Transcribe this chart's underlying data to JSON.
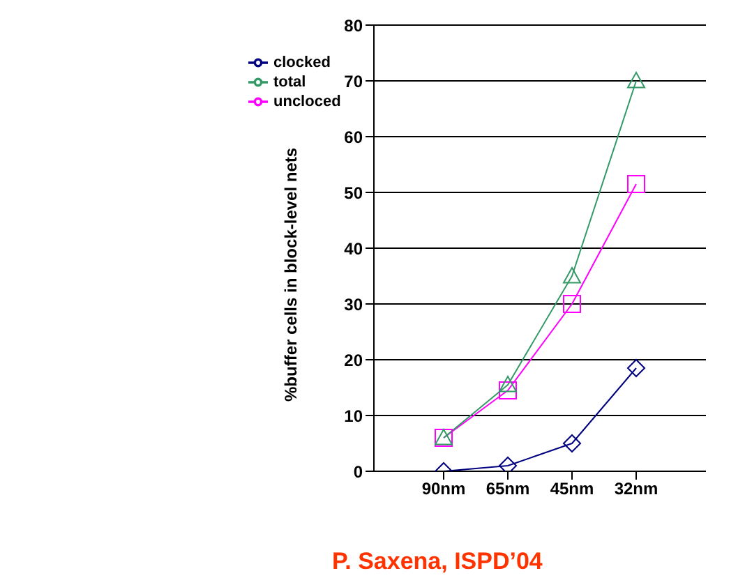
{
  "chart_data": {
    "type": "line",
    "ylabel": "%buffer cells in block-level nets",
    "categories": [
      "90nm",
      "65nm",
      "45nm",
      "32nm"
    ],
    "series": [
      {
        "name": "clocked",
        "color": "#000080",
        "values": [
          0,
          1,
          5,
          18.5
        ],
        "marker": "diamond"
      },
      {
        "name": "uncloced",
        "color": "#ff00ff",
        "values": [
          6,
          14.5,
          30,
          51.5
        ],
        "marker": "square"
      },
      {
        "name": "total",
        "color": "#339966",
        "values": [
          6,
          15.5,
          35,
          70
        ],
        "marker": "triangle"
      }
    ],
    "ylim": [
      0,
      80
    ],
    "yticks": [
      0,
      10,
      20,
      30,
      40,
      50,
      60,
      70,
      80
    ],
    "grid": "y",
    "legend": "top left",
    "annotations": [
      "P. Saxena, ISPD’04"
    ]
  }
}
